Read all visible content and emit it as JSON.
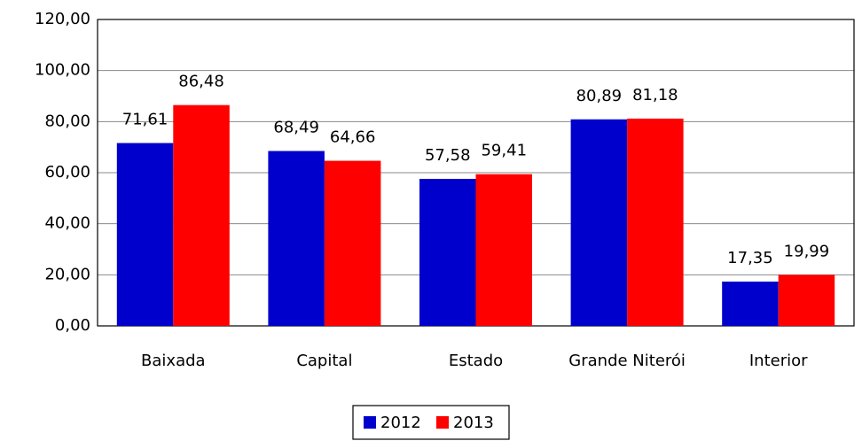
{
  "chart_data": {
    "type": "bar",
    "categories": [
      "Baixada",
      "Capital",
      "Estado",
      "Grande Niterói",
      "Interior"
    ],
    "series": [
      {
        "name": "2012",
        "color": "#0000cc",
        "values": [
          71.61,
          68.49,
          57.58,
          80.89,
          17.35
        ],
        "value_labels": [
          "71,61",
          "68,49",
          "57,58",
          "80,89",
          "17,35"
        ]
      },
      {
        "name": "2013",
        "color": "#ff0000",
        "values": [
          86.48,
          64.66,
          59.41,
          81.18,
          19.99
        ],
        "value_labels": [
          "86,48",
          "64,66",
          "59,41",
          "81,18",
          "19,99"
        ]
      }
    ],
    "ylim": [
      0,
      120
    ],
    "yticks": [
      {
        "value": 0,
        "label": "0,00"
      },
      {
        "value": 20,
        "label": "20,00"
      },
      {
        "value": 40,
        "label": "40,00"
      },
      {
        "value": 60,
        "label": "60,00"
      },
      {
        "value": 80,
        "label": "80,00"
      },
      {
        "value": 100,
        "label": "100,00"
      },
      {
        "value": 120,
        "label": "120,00"
      }
    ],
    "grid": true,
    "legend": "bottom"
  }
}
